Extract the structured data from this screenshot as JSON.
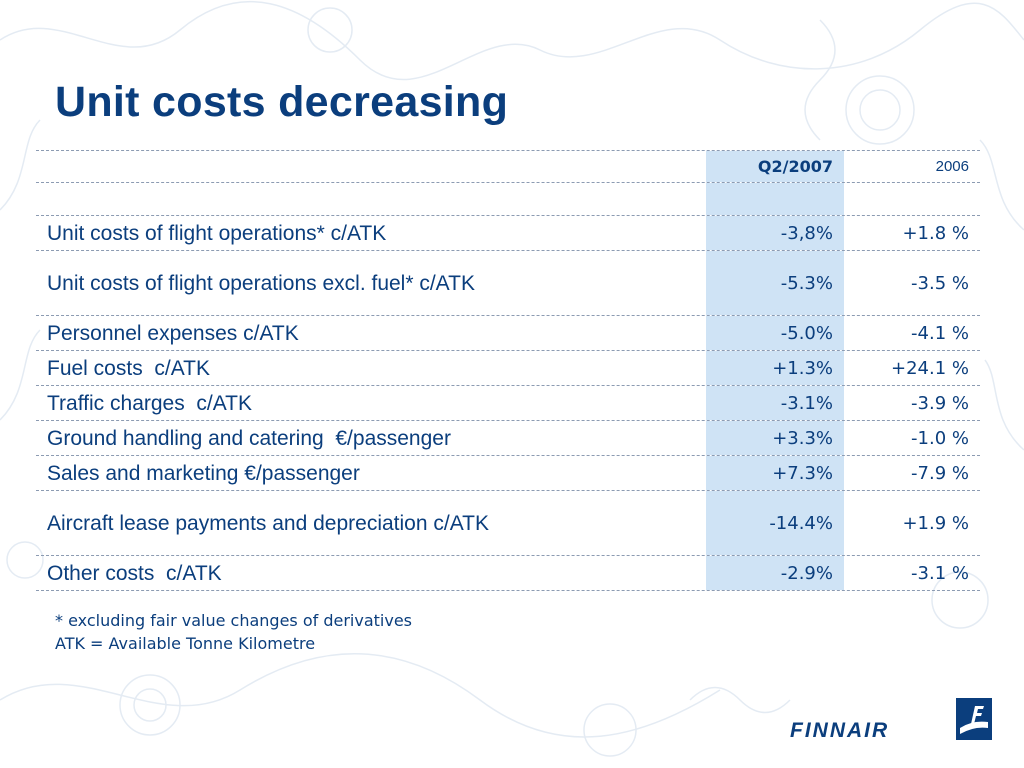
{
  "slide": {
    "title": "Unit costs decreasing"
  },
  "table": {
    "col_q2": "Q2/2007",
    "col_2006": "2006",
    "rows": [
      {
        "label": "Unit costs of flight operations* c/ATK",
        "q2": "-3,8%",
        "y2006": "+1.8 %"
      },
      {
        "label": "Unit costs of flight operations excl. fuel* c/ATK",
        "q2": "-5.3%",
        "y2006": "-3.5 %"
      },
      {
        "label": "Personnel expenses c/ATK",
        "q2": "-5.0%",
        "y2006": "-4.1 %"
      },
      {
        "label": "Fuel costs  c/ATK",
        "q2": "+1.3%",
        "y2006": "+24.1 %"
      },
      {
        "label": "Traffic charges  c/ATK",
        "q2": "-3.1%",
        "y2006": "-3.9 %"
      },
      {
        "label": "Ground handling and catering  €/passenger",
        "q2": "+3.3%",
        "y2006": "-1.0 %"
      },
      {
        "label": "Sales and marketing €/passenger",
        "q2": "+7.3%",
        "y2006": "-7.9 %"
      },
      {
        "label": "Aircraft lease payments and depreciation c/ATK",
        "q2": "-14.4%",
        "y2006": "+1.9 %"
      },
      {
        "label": "Other costs  c/ATK",
        "q2": "-2.9%",
        "y2006": "-3.1 %"
      }
    ]
  },
  "footnotes": [
    "* excluding fair value changes of derivatives",
    "ATK = Available Tonne Kilometre"
  ],
  "logo": {
    "text": "FINNAIR",
    "icon": "finnair-flag-icon",
    "color": "#0b3e7d"
  },
  "colors": {
    "title": "#0b3e7d",
    "highlight_column": "#cfe3f5"
  }
}
